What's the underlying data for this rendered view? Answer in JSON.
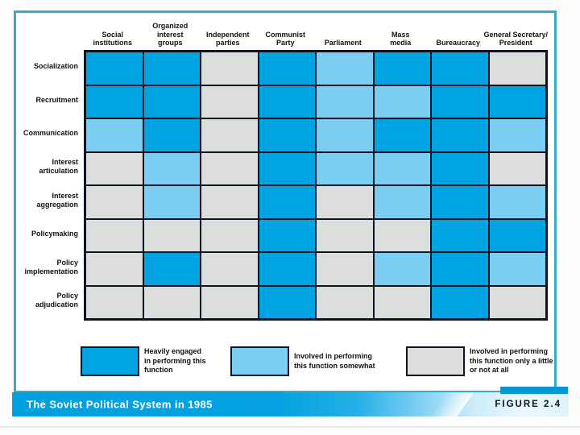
{
  "figure": {
    "bar_title": "The Soviet Political System in 1985",
    "figure_label": "FIGURE 2.4"
  },
  "chart_data": {
    "type": "heatmap",
    "title": "The Soviet Political System in 1985",
    "figure_label": "FIGURE 2.4",
    "columns": [
      "Social\ninstitutions",
      "Organized\ninterest\ngroups",
      "Independent\nparties",
      "Communist\nParty",
      "Parliament",
      "Mass\nmedia",
      "Bureaucracy",
      "General Secretary/\nPresident"
    ],
    "rows": [
      "Socialization",
      "Recruitment",
      "Communication",
      "Interest\narticulation",
      "Interest\naggregation",
      "Policymaking",
      "Policy\nimplementation",
      "Policy\nadjudication"
    ],
    "values": [
      [
        "heavy",
        "heavy",
        "little",
        "heavy",
        "somewhat",
        "heavy",
        "heavy",
        "little"
      ],
      [
        "heavy",
        "heavy",
        "little",
        "heavy",
        "somewhat",
        "somewhat",
        "heavy",
        "heavy"
      ],
      [
        "somewhat",
        "heavy",
        "little",
        "heavy",
        "somewhat",
        "heavy",
        "heavy",
        "somewhat"
      ],
      [
        "little",
        "somewhat",
        "little",
        "heavy",
        "somewhat",
        "somewhat",
        "heavy",
        "little"
      ],
      [
        "little",
        "somewhat",
        "little",
        "heavy",
        "little",
        "somewhat",
        "heavy",
        "somewhat"
      ],
      [
        "little",
        "little",
        "little",
        "heavy",
        "little",
        "little",
        "heavy",
        "heavy"
      ],
      [
        "little",
        "heavy",
        "little",
        "heavy",
        "little",
        "somewhat",
        "heavy",
        "somewhat"
      ],
      [
        "little",
        "little",
        "little",
        "heavy",
        "little",
        "little",
        "heavy",
        "little"
      ]
    ],
    "colors": {
      "heavy": "#00a3e2",
      "somewhat": "#7bcdf1",
      "little": "#dcdddd"
    },
    "frame_color": "#38abc7",
    "legend": [
      {
        "key": "heavy",
        "label": "Heavily engaged\nin performing this\nfunction"
      },
      {
        "key": "somewhat",
        "label": "Involved in performing\nthis function somewhat"
      },
      {
        "key": "little",
        "label": "Involved in performing\nthis function only a little\nor not at all"
      }
    ]
  }
}
